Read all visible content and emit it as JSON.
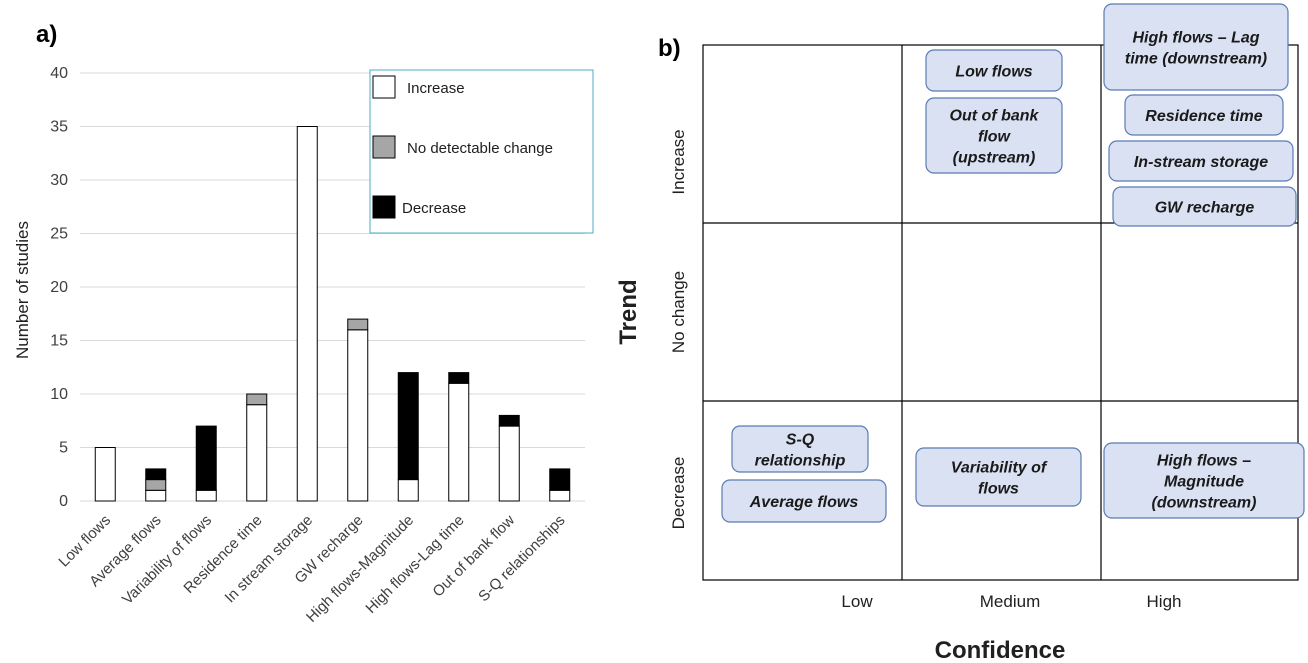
{
  "chart_data": [
    {
      "panel": "a)",
      "type": "bar",
      "stacked": true,
      "ylabel": "Number of studies",
      "xlabel": "",
      "ylim": [
        0,
        40
      ],
      "yticks": [
        0,
        5,
        10,
        15,
        20,
        25,
        30,
        35,
        40
      ],
      "grid": true,
      "legend_position": "top-right",
      "categories": [
        "Low flows",
        "Average flows",
        "Variability of flows",
        "Residence time",
        "In stream storage",
        "GW recharge",
        "High flows-Magnitude",
        "High flows-Lag time",
        "Out of bank flow",
        "S-Q relationships"
      ],
      "series": [
        {
          "name": "Increase",
          "color": "#ffffff",
          "values": [
            5,
            1,
            1,
            9,
            35,
            16,
            2,
            11,
            7,
            1
          ]
        },
        {
          "name": "No detectable change",
          "color": "#a6a6a6",
          "values": [
            0,
            1,
            0,
            1,
            0,
            1,
            0,
            0,
            0,
            0
          ]
        },
        {
          "name": "Decrease",
          "color": "#000000",
          "values": [
            0,
            1,
            6,
            0,
            0,
            0,
            10,
            1,
            1,
            2
          ]
        }
      ]
    },
    {
      "panel": "b)",
      "type": "table",
      "xlabel": "Confidence",
      "ylabel": "Trend",
      "columns": [
        "Low",
        "Medium",
        "High"
      ],
      "rows": [
        "Increase",
        "No change",
        "Decrease"
      ],
      "box_color": "#d9e1f2",
      "box_border": "#5b7bb3",
      "cells": [
        {
          "row": "Increase",
          "col": "Medium",
          "items": [
            [
              "Low flows"
            ],
            [
              "Out of bank",
              "flow",
              "(upstream)"
            ]
          ]
        },
        {
          "row": "Increase",
          "col": "High",
          "items": [
            [
              "High flows – Lag",
              "time (downstream)"
            ],
            [
              "Residence time"
            ],
            [
              "In-stream storage"
            ],
            [
              "GW recharge"
            ]
          ]
        },
        {
          "row": "Decrease",
          "col": "Low",
          "items": [
            [
              "S-Q",
              "relationship"
            ],
            [
              "Average flows"
            ]
          ]
        },
        {
          "row": "Decrease",
          "col": "Medium",
          "items": [
            [
              "Variability of",
              "flows"
            ]
          ]
        },
        {
          "row": "Decrease",
          "col": "High",
          "items": [
            [
              "High flows –",
              "Magnitude",
              "(downstream)"
            ]
          ]
        }
      ]
    }
  ]
}
